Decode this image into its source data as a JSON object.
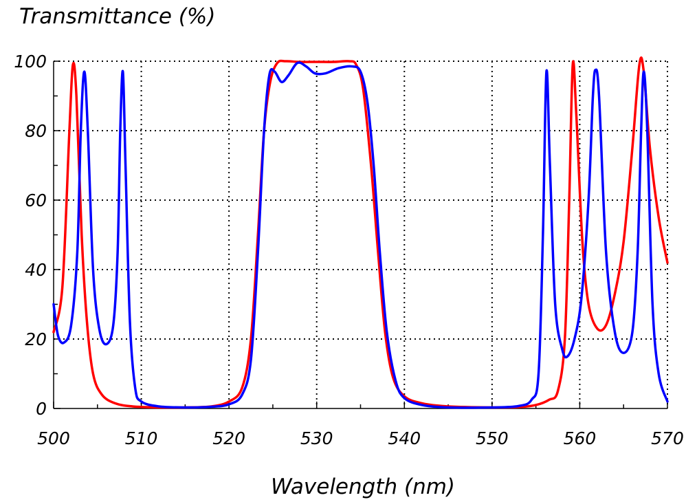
{
  "chart_data": {
    "type": "line",
    "title": "",
    "xlabel": "Wavelength (nm)",
    "ylabel": "Transmittance (%)",
    "xlim": [
      500,
      570
    ],
    "ylim": [
      0,
      100
    ],
    "x_ticks": [
      500,
      510,
      520,
      530,
      540,
      550,
      560,
      570
    ],
    "y_ticks": [
      0,
      20,
      40,
      60,
      80,
      100
    ],
    "grid": true,
    "series": [
      {
        "color": "#ff0000",
        "points": [
          [
            500,
            22
          ],
          [
            501,
            35
          ],
          [
            501.8,
            80
          ],
          [
            502.2,
            99
          ],
          [
            502.6,
            90
          ],
          [
            503.2,
            50
          ],
          [
            503.8,
            25
          ],
          [
            504.5,
            10
          ],
          [
            505.5,
            4
          ],
          [
            507,
            1.5
          ],
          [
            509,
            0.6
          ],
          [
            512,
            0.3
          ],
          [
            515,
            0.3
          ],
          [
            518,
            0.6
          ],
          [
            520,
            2
          ],
          [
            521.5,
            6
          ],
          [
            522.5,
            20
          ],
          [
            523.3,
            50
          ],
          [
            524,
            80
          ],
          [
            524.7,
            94
          ],
          [
            525.5,
            99.5
          ],
          [
            526.5,
            100
          ],
          [
            528,
            99.8
          ],
          [
            530,
            99.8
          ],
          [
            532,
            99.8
          ],
          [
            533.7,
            100
          ],
          [
            534.5,
            99
          ],
          [
            535.3,
            92
          ],
          [
            536.2,
            70
          ],
          [
            537,
            45
          ],
          [
            537.8,
            22
          ],
          [
            538.7,
            9
          ],
          [
            540,
            3.5
          ],
          [
            542,
            1.5
          ],
          [
            545,
            0.6
          ],
          [
            550,
            0.3
          ],
          [
            553,
            0.4
          ],
          [
            555,
            1
          ],
          [
            556.5,
            2.5
          ],
          [
            557.5,
            5
          ],
          [
            558.3,
            20
          ],
          [
            558.8,
            60
          ],
          [
            559.2,
            99
          ],
          [
            559.6,
            85
          ],
          [
            560.3,
            48
          ],
          [
            561,
            30
          ],
          [
            562,
            23
          ],
          [
            563,
            24
          ],
          [
            564,
            33
          ],
          [
            565,
            48
          ],
          [
            566,
            75
          ],
          [
            566.8,
            99
          ],
          [
            567.3,
            97
          ],
          [
            568,
            75
          ],
          [
            569,
            55
          ],
          [
            570,
            42
          ]
        ]
      },
      {
        "color": "#0000ff",
        "points": [
          [
            500,
            30
          ],
          [
            500.5,
            21
          ],
          [
            501.2,
            19
          ],
          [
            502,
            24
          ],
          [
            502.7,
            45
          ],
          [
            503.1,
            80
          ],
          [
            503.5,
            97
          ],
          [
            503.9,
            80
          ],
          [
            504.5,
            40
          ],
          [
            505.2,
            23
          ],
          [
            506,
            18.5
          ],
          [
            506.8,
            24
          ],
          [
            507.3,
            45
          ],
          [
            507.6,
            80
          ],
          [
            507.9,
            97
          ],
          [
            508.2,
            70
          ],
          [
            508.7,
            25
          ],
          [
            509.3,
            6
          ],
          [
            510,
            2
          ],
          [
            512,
            0.6
          ],
          [
            515,
            0.3
          ],
          [
            518,
            0.5
          ],
          [
            520,
            1.2
          ],
          [
            521.5,
            4
          ],
          [
            522.5,
            14
          ],
          [
            523.3,
            45
          ],
          [
            524,
            80
          ],
          [
            524.6,
            96
          ],
          [
            525.2,
            97
          ],
          [
            526,
            94
          ],
          [
            526.8,
            96
          ],
          [
            527.8,
            99.5
          ],
          [
            528.8,
            98.5
          ],
          [
            529.8,
            96.5
          ],
          [
            531,
            96.5
          ],
          [
            532.5,
            98
          ],
          [
            534,
            98.5
          ],
          [
            535,
            97
          ],
          [
            535.8,
            88
          ],
          [
            536.5,
            70
          ],
          [
            537.2,
            45
          ],
          [
            538,
            22
          ],
          [
            539,
            8
          ],
          [
            540,
            3
          ],
          [
            542,
            1
          ],
          [
            545,
            0.3
          ],
          [
            550,
            0.3
          ],
          [
            553,
            0.7
          ],
          [
            554.5,
            2.5
          ],
          [
            555.3,
            10
          ],
          [
            555.8,
            50
          ],
          [
            556.2,
            97
          ],
          [
            556.6,
            70
          ],
          [
            557.2,
            30
          ],
          [
            558,
            17
          ],
          [
            558.6,
            15
          ],
          [
            559.4,
            20
          ],
          [
            560.2,
            32
          ],
          [
            561,
            60
          ],
          [
            561.5,
            90
          ],
          [
            561.8,
            97.5
          ],
          [
            562.2,
            90
          ],
          [
            563,
            45
          ],
          [
            564,
            22
          ],
          [
            565,
            16
          ],
          [
            566,
            22
          ],
          [
            566.6,
            45
          ],
          [
            567,
            80
          ],
          [
            567.3,
            97
          ],
          [
            567.7,
            80
          ],
          [
            568.3,
            30
          ],
          [
            569,
            10
          ],
          [
            570,
            2
          ]
        ]
      }
    ]
  }
}
